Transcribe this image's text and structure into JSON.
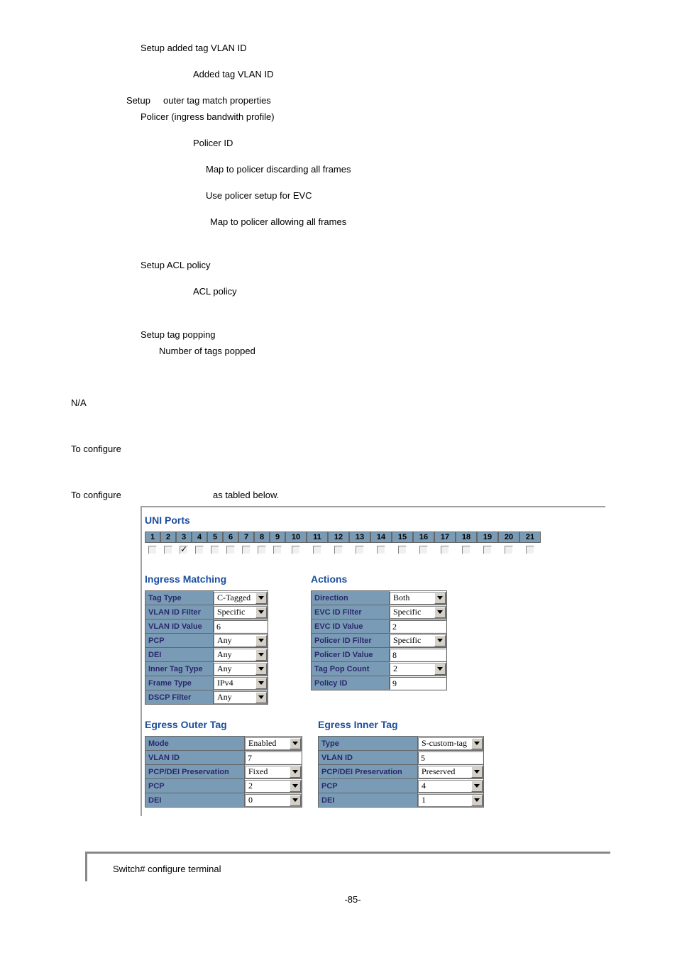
{
  "text": {
    "l1": "Setup added tag VLAN ID",
    "l2": "Added tag VLAN ID",
    "l3a": "Setup",
    "l3b": "outer tag match properties",
    "l4": "Policer (ingress bandwith profile)",
    "l5": "Policer  ID",
    "l6": "Map to policer discarding all frames",
    "l7": "Use policer setup for EVC",
    "l8": "Map to policer allowing all frames",
    "l9": "Setup ACL policy",
    "l10": "ACL policy",
    "l11": "Setup tag popping",
    "l12": "Number of tags popped",
    "na": "N/A",
    "toconf": "To configure",
    "tableb": "as tabled below.",
    "pageNum": "-85-"
  },
  "uni": {
    "title": "UNI Ports",
    "ports": [
      "1",
      "2",
      "3",
      "4",
      "5",
      "6",
      "7",
      "8",
      "9",
      "10",
      "11",
      "12",
      "13",
      "14",
      "15",
      "16",
      "17",
      "18",
      "19",
      "20",
      "21"
    ],
    "checked": [
      false,
      false,
      true,
      false,
      false,
      false,
      false,
      false,
      false,
      false,
      false,
      false,
      false,
      false,
      false,
      false,
      false,
      false,
      false,
      false,
      false
    ]
  },
  "ingress": {
    "title": "Ingress Matching",
    "rows": [
      {
        "label": "Tag Type",
        "type": "select",
        "value": "C-Tagged"
      },
      {
        "label": "VLAN ID Filter",
        "type": "select",
        "value": "Specific"
      },
      {
        "label": "VLAN ID Value",
        "type": "input",
        "value": "6"
      },
      {
        "label": "PCP",
        "type": "select",
        "value": "Any"
      },
      {
        "label": "DEI",
        "type": "select",
        "value": "Any"
      },
      {
        "label": "Inner Tag Type",
        "type": "select",
        "value": "Any"
      },
      {
        "label": "Frame Type",
        "type": "select",
        "value": "IPv4"
      },
      {
        "label": "DSCP Filter",
        "type": "select",
        "value": "Any"
      }
    ],
    "labelWidth": 96,
    "valWidth": 76
  },
  "actions": {
    "title": "Actions",
    "rows": [
      {
        "label": "Direction",
        "type": "select",
        "value": "Both"
      },
      {
        "label": "EVC ID Filter",
        "type": "select",
        "value": "Specific"
      },
      {
        "label": "EVC ID Value",
        "type": "input",
        "value": "2"
      },
      {
        "label": "Policer ID Filter",
        "type": "select",
        "value": "Specific"
      },
      {
        "label": "Policer ID Value",
        "type": "input",
        "value": "8"
      },
      {
        "label": "Tag Pop Count",
        "type": "select",
        "value": "2"
      },
      {
        "label": "Policy ID",
        "type": "input",
        "value": "9"
      }
    ],
    "labelWidth": 110,
    "valWidth": 80
  },
  "egressOuter": {
    "title": "Egress Outer Tag",
    "rows": [
      {
        "label": "Mode",
        "type": "select",
        "value": "Enabled"
      },
      {
        "label": "VLAN ID",
        "type": "input",
        "value": "7"
      },
      {
        "label": "PCP/DEI Preservation",
        "type": "select",
        "value": "Fixed"
      },
      {
        "label": "PCP",
        "type": "select",
        "value": "2"
      },
      {
        "label": "DEI",
        "type": "select",
        "value": "0"
      }
    ],
    "labelWidth": 140,
    "valWidth": 80
  },
  "egressInner": {
    "title": "Egress Inner Tag",
    "rows": [
      {
        "label": "Type",
        "type": "select",
        "value": "S-custom-tag"
      },
      {
        "label": "VLAN ID",
        "type": "input",
        "value": "5"
      },
      {
        "label": "PCP/DEI Preservation",
        "type": "select",
        "value": "Preserved"
      },
      {
        "label": "PCP",
        "type": "select",
        "value": "4"
      },
      {
        "label": "DEI",
        "type": "select",
        "value": "1"
      }
    ],
    "labelWidth": 140,
    "valWidth": 92
  },
  "terminal": {
    "line": "Switch# configure terminal"
  },
  "colors": {
    "headerBg": "#7a9bb5",
    "labelText": "#29296b",
    "sectionTitle": "#1a4e9d"
  }
}
